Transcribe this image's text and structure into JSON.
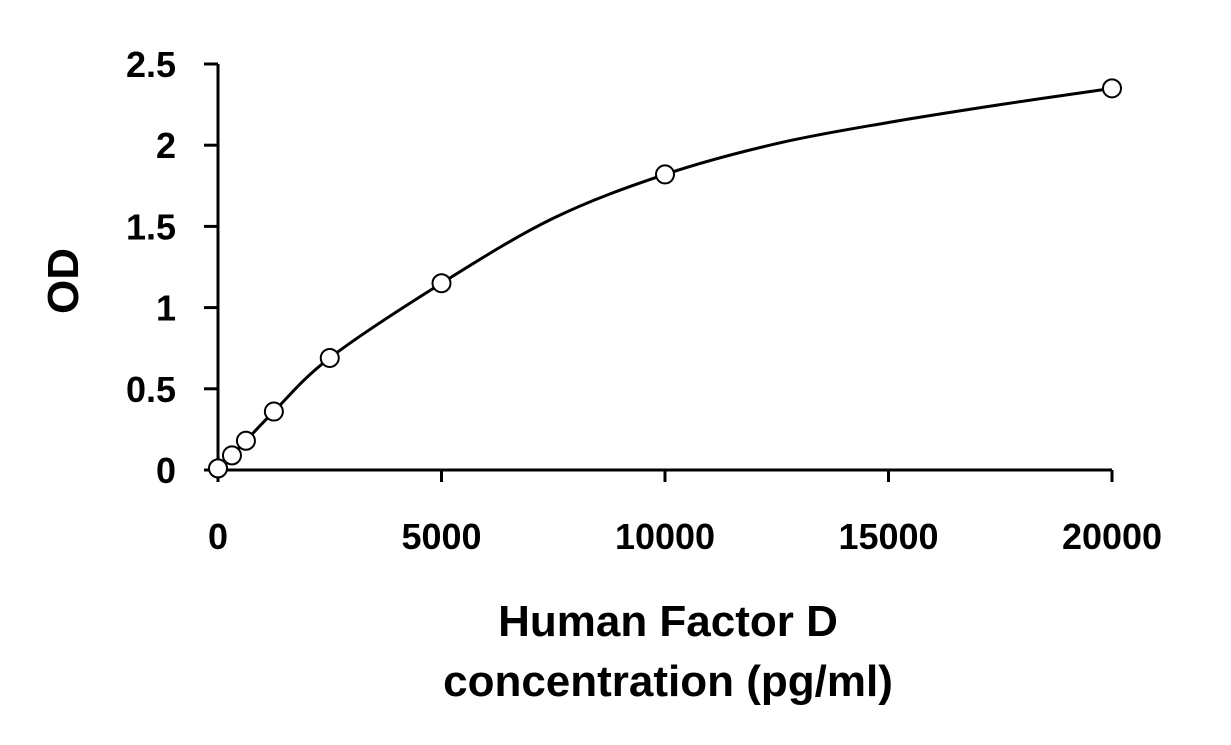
{
  "chart_data": {
    "type": "scatter",
    "title": "",
    "xlabel": [
      "Human Factor D",
      "concentration (pg/ml)"
    ],
    "ylabel": "OD",
    "xlim": [
      0,
      20000
    ],
    "ylim": [
      0,
      2.5
    ],
    "xticks": [
      "0",
      "5000",
      "10000",
      "15000",
      "20000"
    ],
    "yticks": [
      "0",
      "0.5",
      "1",
      "1.5",
      "2",
      "2.5"
    ],
    "grid": false,
    "legend": "none",
    "colors": {
      "line": "#000000",
      "marker": "#000000",
      "background": "#ffffff"
    },
    "series": [
      {
        "x": [
          0,
          312.5,
          625,
          1250,
          2500,
          5000,
          10000,
          20000
        ],
        "y": [
          0.01,
          0.09,
          0.18,
          0.36,
          0.69,
          1.15,
          1.82,
          2.35
        ],
        "marker": "open-circle"
      }
    ],
    "fit_curve": {
      "x": [
        0,
        312.5,
        625,
        1250,
        2500,
        5000,
        7500,
        10000,
        12500,
        15000,
        17500,
        20000
      ],
      "y": [
        0.01,
        0.09,
        0.18,
        0.36,
        0.69,
        1.15,
        1.55,
        1.82,
        2.01,
        2.14,
        2.25,
        2.35
      ]
    }
  }
}
